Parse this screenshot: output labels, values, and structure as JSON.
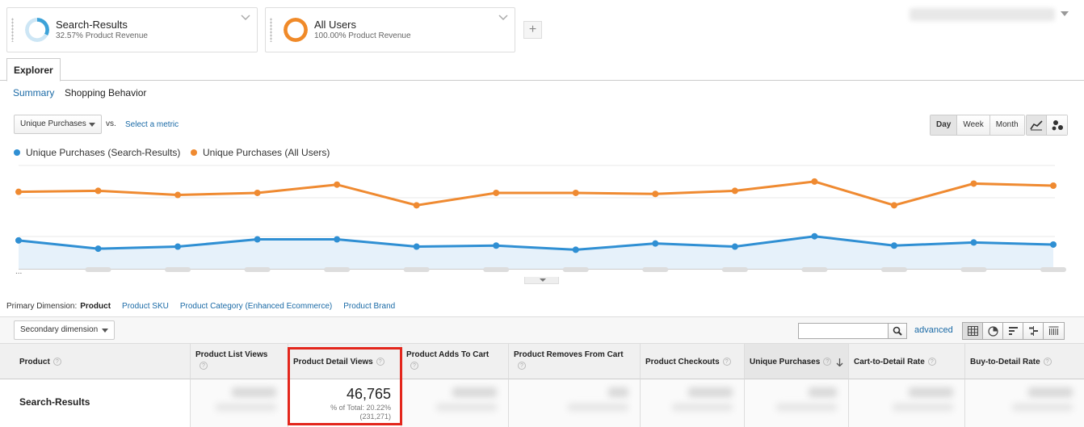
{
  "segments": [
    {
      "name": "Search-Results",
      "subtitle": "32.57% Product Revenue",
      "color": "#3ca2d8",
      "percent": 32.57
    },
    {
      "name": "All Users",
      "subtitle": "100.00% Product Revenue",
      "color": "#f08a29",
      "percent": 100
    }
  ],
  "add_segment_label": "+",
  "tabs": {
    "explorer": "Explorer"
  },
  "subtabs": {
    "summary": "Summary",
    "shopping": "Shopping Behavior"
  },
  "metric": {
    "selected": "Unique Purchases",
    "vs": "vs.",
    "select_metric": "Select a metric"
  },
  "granularity": {
    "day": "Day",
    "week": "Week",
    "month": "Month"
  },
  "legend": [
    {
      "label": "Unique Purchases (Search-Results)",
      "color": "#2f8fd3"
    },
    {
      "label": "Unique Purchases (All Users)",
      "color": "#ef8a31"
    }
  ],
  "chart_data": {
    "type": "line",
    "title": "",
    "x": [
      1,
      2,
      3,
      4,
      5,
      6,
      7,
      8,
      9,
      10,
      11,
      12,
      13,
      14
    ],
    "series": [
      {
        "name": "Unique Purchases (All Users)",
        "color": "#ef8a31",
        "values": [
          69,
          70,
          66,
          68,
          76,
          56,
          68,
          68,
          67,
          70,
          79,
          56,
          77,
          75
        ]
      },
      {
        "name": "Unique Purchases (Search-Results)",
        "color": "#2f8fd3",
        "values": [
          22,
          14,
          16,
          23,
          23,
          16,
          17,
          13,
          19,
          16,
          26,
          17,
          20,
          18
        ]
      }
    ],
    "ylim": [
      0,
      100
    ],
    "grid": true,
    "legend": "top-left"
  },
  "chart_more": "...",
  "dimensions": {
    "label": "Primary Dimension:",
    "current": "Product",
    "links": [
      "Product SKU",
      "Product Category (Enhanced Ecommerce)",
      "Product Brand"
    ]
  },
  "secondary_dimension": "Secondary dimension",
  "advanced_label": "advanced",
  "help_glyph": "?",
  "columns": {
    "product": "Product",
    "list_views": "Product List Views",
    "detail_views": "Product Detail Views",
    "adds_to_cart": "Product Adds To Cart",
    "removes_from_cart": "Product Removes From Cart",
    "checkouts": "Product Checkouts",
    "unique_purchases": "Unique Purchases",
    "cart_to_detail": "Cart-to-Detail Rate",
    "buy_to_detail": "Buy-to-Detail Rate"
  },
  "row": {
    "name": "Search-Results",
    "detail_views": "46,765",
    "detail_views_pct": "% of Total: 20.22%",
    "detail_views_total": "(231,271)"
  }
}
